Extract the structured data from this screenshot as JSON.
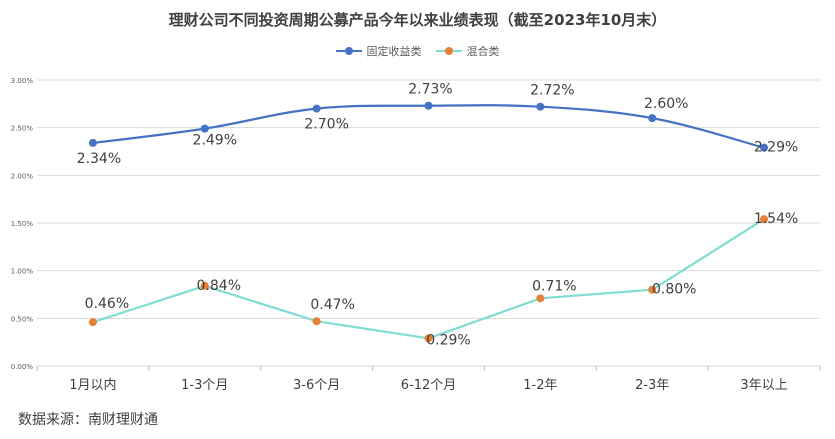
{
  "chart_data": {
    "type": "line",
    "title": "理财公司不同投资周期公募产品今年以来业绩表现（截至2023年10月末）",
    "categories": [
      "1月以内",
      "1-3个月",
      "3-6个月",
      "6-12个月",
      "1-2年",
      "2-3年",
      "3年以上"
    ],
    "ylim": [
      0,
      3.0
    ],
    "yticks": [
      0,
      0.5,
      1.0,
      1.5,
      2.0,
      2.5,
      3.0
    ],
    "ytick_labels": [
      "0.00%",
      "0.50%",
      "1.00%",
      "1.50%",
      "2.00%",
      "2.50%",
      "3.00%"
    ],
    "xlabel": "",
    "ylabel": "",
    "legend_position": "top",
    "series": [
      {
        "name": "固定收益类",
        "color": "#4472C4",
        "values": [
          2.34,
          2.49,
          2.7,
          2.73,
          2.72,
          2.6,
          2.29
        ],
        "labels": [
          "2.34%",
          "2.49%",
          "2.70%",
          "2.73%",
          "2.72%",
          "2.60%",
          "2.29%"
        ],
        "smooth": true
      },
      {
        "name": "混合类",
        "color": "#7FDDD4",
        "marker_color": "#ED7D31",
        "values": [
          0.46,
          0.84,
          0.47,
          0.29,
          0.71,
          0.8,
          1.54
        ],
        "labels": [
          "0.46%",
          "0.84%",
          "0.47%",
          "0.29%",
          "0.71%",
          "0.80%",
          "1.54%"
        ],
        "smooth": false
      }
    ]
  },
  "source": "数据来源：南财理财通"
}
